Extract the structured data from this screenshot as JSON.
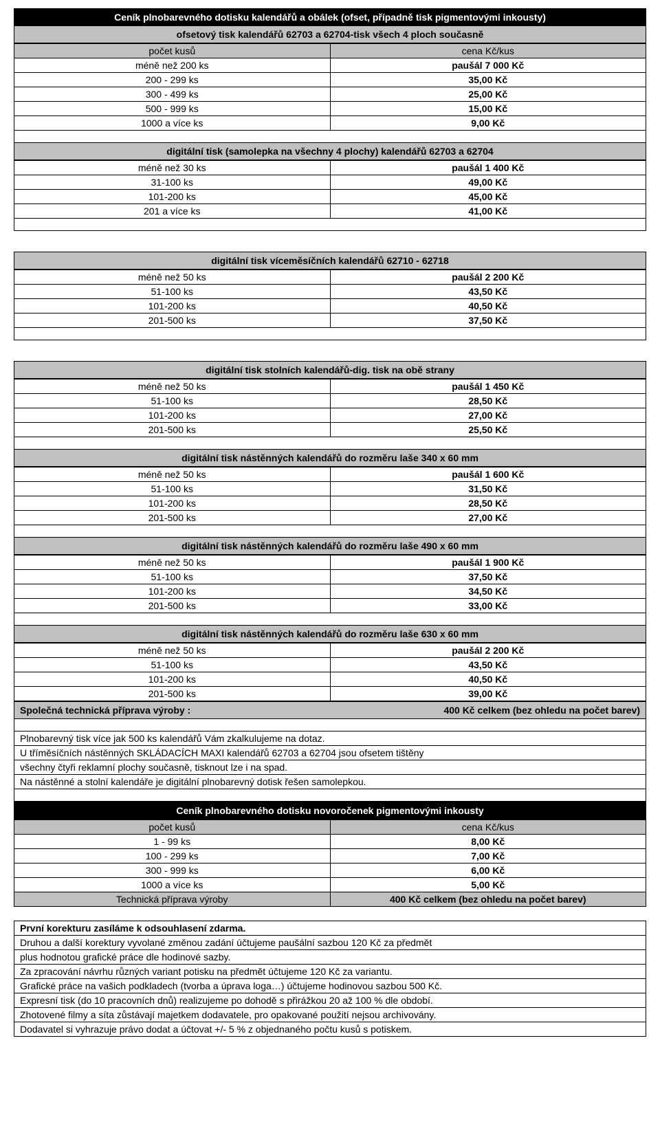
{
  "titles": {
    "main": "Ceník plnobarevného dotisku kalendářů a obálek (ofset, případně tisk pigmentovými inkousty)",
    "s1": "ofsetový tisk kalendářů 62703 a 62704-tisk všech 4 ploch současně",
    "s2": "digitální tisk (samolepka na všechny 4 plochy) kalendářů 62703 a 62704",
    "s3": "digitální tisk víceměsíčních kalendářů 62710 - 62718",
    "s4": "digitální tisk stolních kalendářů-dig. tisk na obě strany",
    "s5": "digitální tisk nástěnných kalendářů do rozměru laše 340 x 60 mm",
    "s6": "digitální tisk nástěnných kalendářů do rozměru laše 490 x 60 mm",
    "s7": "digitální tisk nástěnných kalendářů do rozměru laše 630 x 60 mm",
    "main2": "Ceník plnobarevného dotisku novoročenek pigmentovými inkousty"
  },
  "header": {
    "left": "počet kusů",
    "right": "cena Kč/kus"
  },
  "s1rows": [
    {
      "l": "méně než 200 ks",
      "r": "paušál 7 000 Kč"
    },
    {
      "l": "200 - 299 ks",
      "r": "35,00 Kč"
    },
    {
      "l": "300 - 499 ks",
      "r": "25,00 Kč"
    },
    {
      "l": "500 - 999 ks",
      "r": "15,00 Kč"
    },
    {
      "l": "1000 a více ks",
      "r": "9,00 Kč"
    }
  ],
  "s2rows": [
    {
      "l": "méně než 30 ks",
      "r": "paušál 1 400 Kč"
    },
    {
      "l": "31-100 ks",
      "r": "49,00 Kč"
    },
    {
      "l": "101-200 ks",
      "r": "45,00 Kč"
    },
    {
      "l": "201 a více ks",
      "r": "41,00 Kč"
    }
  ],
  "s3rows": [
    {
      "l": "méně než 50 ks",
      "r": "paušál 2 200 Kč"
    },
    {
      "l": "51-100 ks",
      "r": "43,50 Kč"
    },
    {
      "l": "101-200 ks",
      "r": "40,50 Kč"
    },
    {
      "l": "201-500 ks",
      "r": "37,50 Kč"
    }
  ],
  "s4rows": [
    {
      "l": "méně než 50 ks",
      "r": "paušál 1 450 Kč"
    },
    {
      "l": "51-100 ks",
      "r": "28,50 Kč"
    },
    {
      "l": "101-200 ks",
      "r": "27,00 Kč"
    },
    {
      "l": "201-500 ks",
      "r": "25,50 Kč"
    }
  ],
  "s5rows": [
    {
      "l": "méně než 50 ks",
      "r": "paušál 1 600 Kč"
    },
    {
      "l": "51-100 ks",
      "r": "31,50 Kč"
    },
    {
      "l": "101-200 ks",
      "r": "28,50 Kč"
    },
    {
      "l": "201-500 ks",
      "r": "27,00 Kč"
    }
  ],
  "s6rows": [
    {
      "l": "méně než 50 ks",
      "r": "paušál 1 900 Kč"
    },
    {
      "l": "51-100 ks",
      "r": "37,50 Kč"
    },
    {
      "l": "101-200 ks",
      "r": "34,50 Kč"
    },
    {
      "l": "201-500 ks",
      "r": "33,00 Kč"
    }
  ],
  "s7rows": [
    {
      "l": "méně než 50 ks",
      "r": "paušál 2 200 Kč"
    },
    {
      "l": "51-100 ks",
      "r": "43,50 Kč"
    },
    {
      "l": "101-200 ks",
      "r": "40,50 Kč"
    },
    {
      "l": "201-500 ks",
      "r": "39,00 Kč"
    }
  ],
  "tech": {
    "label": "Společná technická příprava výroby :",
    "value": "400 Kč celkem (bez ohledu na počet barev)"
  },
  "notes": [
    "Plnobarevný tisk více jak 500 ks kalendářů Vám zkalkulujeme na dotaz.",
    "U tříměsíčních nástěnných SKLÁDACÍCH MAXI kalendářů 62703 a 62704 jsou ofsetem tištěny",
    "všechny čtyři reklamní plochy současně, tisknout lze i na spad.",
    "Na nástěnné a stolní kalendáře je digitální plnobarevný dotisk řešen samolepkou."
  ],
  "s8rows": [
    {
      "l": "počet kusů",
      "r": "cena Kč/kus",
      "h": true
    },
    {
      "l": "1 - 99 ks",
      "r": "8,00 Kč"
    },
    {
      "l": "100 - 299 ks",
      "r": "7,00 Kč"
    },
    {
      "l": "300 - 999 ks",
      "r": "6,00 Kč"
    },
    {
      "l": "1000 a více ks",
      "r": "5,00 Kč"
    },
    {
      "l": "Technická příprava výroby",
      "r": "400 Kč celkem (bez ohledu na počet barev)",
      "g": true
    }
  ],
  "footnotes": [
    "První korekturu zasíláme k odsouhlasení zdarma.",
    "Druhou a další korektury vyvolané změnou zadání  účtujeme paušální sazbou 120 Kč za předmět",
    "plus hodnotou grafické práce dle hodinové sazby.",
    "Za zpracování návrhu různých variant potisku na předmět účtujeme 120 Kč za variantu.",
    "Grafické práce na vašich podkladech (tvorba a úprava loga…) účtujeme hodinovou sazbou 500 Kč.",
    "Expresní tisk (do 10 pracovních dnů) realizujeme po dohodě s přirážkou 20 až 100 % dle období.",
    "Zhotovené filmy a síta zůstávají majetkem dodavatele, pro opakované použití nejsou archivovány.",
    "Dodavatel si vyhrazuje právo dodat a účtovat +/- 5 % z objednaného počtu kusů s potiskem."
  ]
}
